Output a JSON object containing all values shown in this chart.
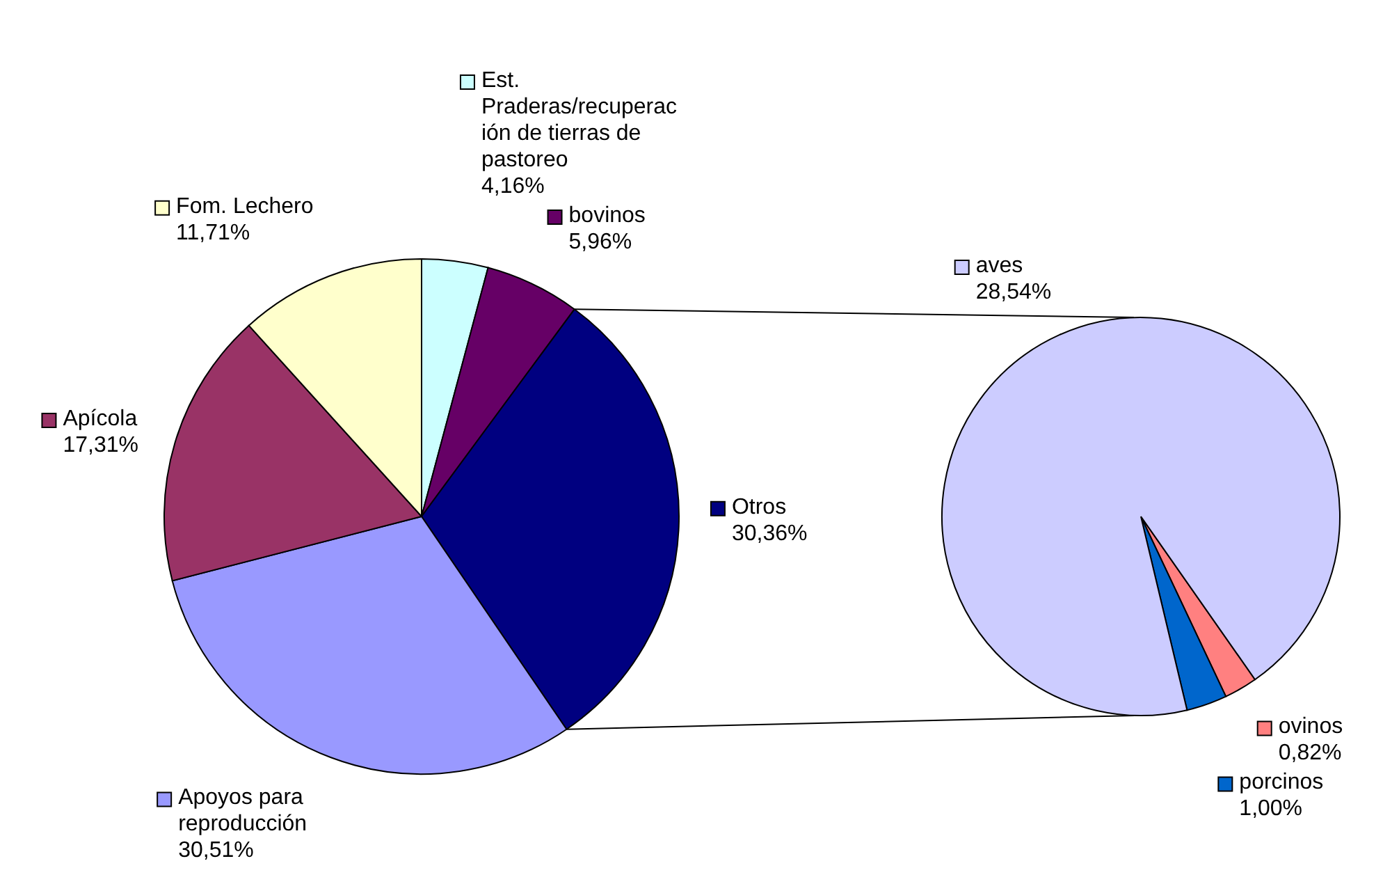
{
  "chart_data": [
    {
      "type": "pie",
      "categories": [
        "Est. Praderas/recuperación de tierras de pastoreo",
        "bovinos",
        "Otros",
        "Apoyos para reproducción",
        "Apícola",
        "Fom. Lechero"
      ],
      "values": [
        4.16,
        5.96,
        30.36,
        30.51,
        17.31,
        11.71
      ],
      "value_labels": [
        "4,16%",
        "5,96%",
        "30,36%",
        "30,51%",
        "17,31%",
        "11,71%"
      ],
      "colors": [
        "#ccffff",
        "#660066",
        "#000080",
        "#9999ff",
        "#993366",
        "#ffffcc"
      ],
      "legend": "right"
    },
    {
      "type": "pie",
      "categories": [
        "ovinos",
        "porcinos",
        "aves"
      ],
      "values": [
        0.82,
        1.0,
        28.54
      ],
      "value_labels": [
        "0,82%",
        "1,00%",
        "28,54%"
      ],
      "colors": [
        "#ff8080",
        "#0066cc",
        "#ccccff"
      ],
      "legend": "right"
    }
  ]
}
